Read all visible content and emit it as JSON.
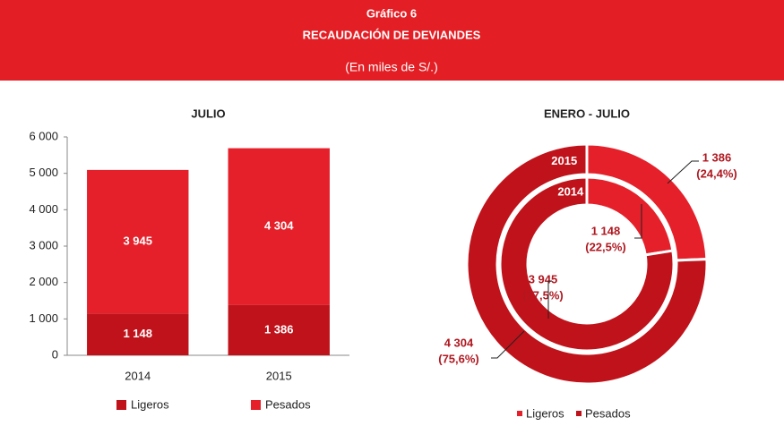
{
  "header": {
    "label": "Gráfico 6",
    "title": "RECAUDACIÓN DE DEVIANDES",
    "subtitle": "(En miles de S/.)"
  },
  "chart_data": [
    {
      "type": "stacked_bar",
      "title": "JULIO",
      "categories": [
        "2014",
        "2015"
      ],
      "series": [
        {
          "name": "Ligeros",
          "color": "#c0121a",
          "values": [
            1148,
            1386
          ],
          "value_labels": [
            "1 148",
            "1 386"
          ]
        },
        {
          "name": "Pesados",
          "color": "#e5202a",
          "values": [
            3945,
            4304
          ],
          "value_labels": [
            "3 945",
            "4 304"
          ]
        }
      ],
      "ylim": [
        0,
        6000
      ],
      "yticks": [
        0,
        {
          "value": 1000,
          "label": "1 000"
        },
        {
          "value": 2000,
          "label": "2 000"
        },
        {
          "value": 3000,
          "label": "3 000"
        },
        {
          "value": 4000,
          "label": "4 000"
        },
        {
          "value": 5000,
          "label": "5 000"
        },
        {
          "value": 6000,
          "label": "6 000"
        }
      ],
      "legend": "bottom"
    },
    {
      "type": "donut",
      "title": "ENERO - JULIO",
      "categories": [
        "Ligeros",
        "Pesados"
      ],
      "colors": [
        "#e5202a",
        "#c0121a"
      ],
      "series": [
        {
          "name": "2015",
          "values": [
            1386,
            4304
          ],
          "value_labels": [
            "1 386",
            "4 304"
          ],
          "percent_labels": [
            "(24,4%)",
            "(75,6%)"
          ]
        },
        {
          "name": "2014",
          "values": [
            1148,
            3945
          ],
          "value_labels": [
            "1 148",
            "3 945"
          ],
          "percent_labels": [
            "(22,5%)",
            "(77,5%)"
          ]
        }
      ],
      "legend": "bottom"
    }
  ]
}
